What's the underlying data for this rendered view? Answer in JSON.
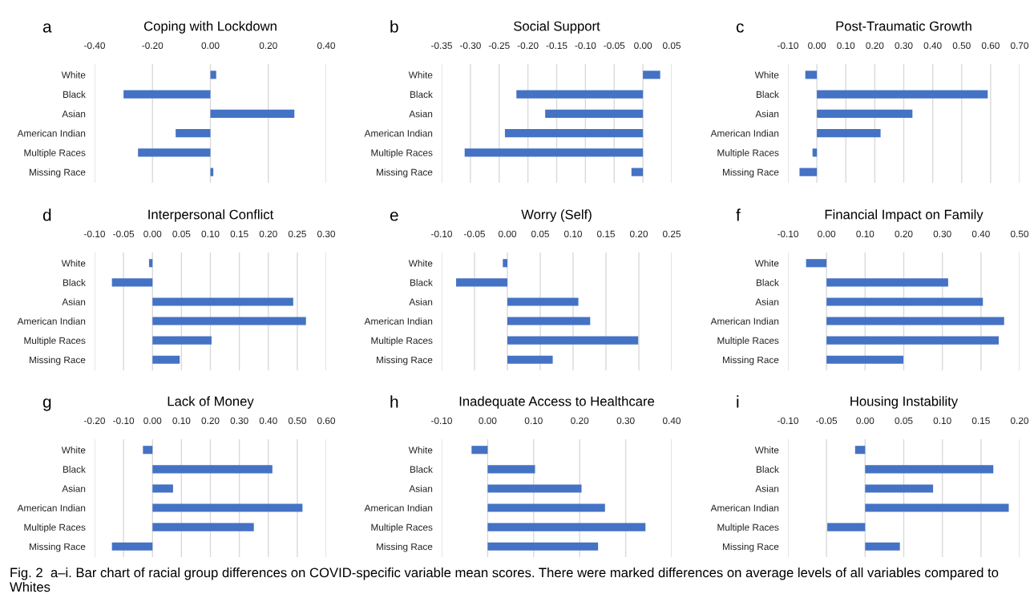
{
  "chart_data": [
    {
      "type": "bar",
      "orientation": "horizontal",
      "title": "Coping with Lockdown",
      "annotations": [
        "a"
      ],
      "categories": [
        "White",
        "Black",
        "Asian",
        "American Indian",
        "Multiple Races",
        "Missing Race"
      ],
      "color": "#4472c4",
      "grid": "x",
      "values": [
        0.02,
        -0.3,
        0.29,
        -0.12,
        -0.25,
        0.01
      ],
      "xlim": [
        -0.4,
        0.4
      ],
      "xticks": [
        {
          "value": -0.4,
          "label": "-0.40"
        },
        {
          "value": -0.2,
          "label": "-0.20"
        },
        {
          "value": 0,
          "label": "0.00"
        },
        {
          "value": 0.2,
          "label": "0.20"
        },
        {
          "value": 0.4,
          "label": "0.40"
        }
      ]
    },
    {
      "type": "bar",
      "orientation": "horizontal",
      "title": "Social Support",
      "annotations": [
        "b"
      ],
      "categories": [
        "White",
        "Black",
        "Asian",
        "American Indian",
        "Multiple Races",
        "Missing Race"
      ],
      "color": "#4472c4",
      "grid": "x",
      "values": [
        0.03,
        -0.22,
        -0.17,
        -0.24,
        -0.31,
        -0.02
      ],
      "xlim": [
        -0.35,
        0.05
      ],
      "xticks": [
        {
          "value": -0.35,
          "label": "-0.35"
        },
        {
          "value": -0.3,
          "label": "-0.30"
        },
        {
          "value": -0.25,
          "label": "-0.25"
        },
        {
          "value": -0.2,
          "label": "-0.20"
        },
        {
          "value": -0.15,
          "label": "-0.15"
        },
        {
          "value": -0.1,
          "label": "-0.10"
        },
        {
          "value": -0.05,
          "label": "-0.05"
        },
        {
          "value": 0,
          "label": "0.00"
        },
        {
          "value": 0.05,
          "label": "0.05"
        }
      ]
    },
    {
      "type": "bar",
      "orientation": "horizontal",
      "title": "Post-Traumatic Growth",
      "annotations": [
        "c"
      ],
      "categories": [
        "White",
        "Black",
        "Asian",
        "American Indian",
        "Multiple Races",
        "Missing Race"
      ],
      "color": "#4472c4",
      "grid": "x",
      "values": [
        -0.04,
        0.59,
        0.33,
        0.22,
        -0.015,
        -0.06
      ],
      "xlim": [
        -0.1,
        0.7
      ],
      "xticks": [
        {
          "value": -0.1,
          "label": "-0.10"
        },
        {
          "value": 0,
          "label": "0.00"
        },
        {
          "value": 0.1,
          "label": "0.10"
        },
        {
          "value": 0.2,
          "label": "0.20"
        },
        {
          "value": 0.3,
          "label": "0.30"
        },
        {
          "value": 0.4,
          "label": "0.40"
        },
        {
          "value": 0.5,
          "label": "0.50"
        },
        {
          "value": 0.6,
          "label": "0.60"
        },
        {
          "value": 0.7,
          "label": "0.70"
        }
      ]
    },
    {
      "type": "bar",
      "orientation": "horizontal",
      "title": "Interpersonal Conflict",
      "annotations": [
        "d"
      ],
      "categories": [
        "White",
        "Black",
        "Asian",
        "American Indian",
        "Multiple Races",
        "Missing Race"
      ],
      "color": "#4472c4",
      "grid": "x",
      "values": [
        -0.006,
        -0.07,
        0.243,
        0.265,
        0.102,
        0.047
      ],
      "xlim": [
        -0.1,
        0.3
      ],
      "xticks": [
        {
          "value": -0.1,
          "label": "-0.10"
        },
        {
          "value": -0.05,
          "label": "-0.05"
        },
        {
          "value": 0,
          "label": "0.00"
        },
        {
          "value": 0.05,
          "label": "0.05"
        },
        {
          "value": 0.1,
          "label": "0.10"
        },
        {
          "value": 0.15,
          "label": "0.15"
        },
        {
          "value": 0.2,
          "label": "0.20"
        },
        {
          "value": 0.25,
          "label": "0.25"
        },
        {
          "value": 0.3,
          "label": "0.30"
        }
      ]
    },
    {
      "type": "bar",
      "orientation": "horizontal",
      "title": "Worry (Self)",
      "annotations": [
        "e"
      ],
      "categories": [
        "White",
        "Black",
        "Asian",
        "American Indian",
        "Multiple Races",
        "Missing Race"
      ],
      "color": "#4472c4",
      "grid": "x",
      "values": [
        -0.007,
        -0.078,
        0.108,
        0.126,
        0.199,
        0.069
      ],
      "xlim": [
        -0.1,
        0.25
      ],
      "xticks": [
        {
          "value": -0.1,
          "label": "-0.10"
        },
        {
          "value": -0.05,
          "label": "-0.05"
        },
        {
          "value": 0,
          "label": "0.00"
        },
        {
          "value": 0.05,
          "label": "0.05"
        },
        {
          "value": 0.1,
          "label": "0.10"
        },
        {
          "value": 0.15,
          "label": "0.15"
        },
        {
          "value": 0.2,
          "label": "0.20"
        },
        {
          "value": 0.25,
          "label": "0.25"
        }
      ]
    },
    {
      "type": "bar",
      "orientation": "horizontal",
      "title": "Financial Impact on Family",
      "annotations": [
        "f"
      ],
      "categories": [
        "White",
        "Black",
        "Asian",
        "American Indian",
        "Multiple Races",
        "Missing Race"
      ],
      "color": "#4472c4",
      "grid": "x",
      "values": [
        -0.053,
        0.315,
        0.405,
        0.46,
        0.446,
        0.199
      ],
      "xlim": [
        -0.1,
        0.5
      ],
      "xticks": [
        {
          "value": -0.1,
          "label": "-0.10"
        },
        {
          "value": 0,
          "label": "0.00"
        },
        {
          "value": 0.1,
          "label": "0.10"
        },
        {
          "value": 0.2,
          "label": "0.20"
        },
        {
          "value": 0.3,
          "label": "0.30"
        },
        {
          "value": 0.4,
          "label": "0.40"
        },
        {
          "value": 0.5,
          "label": "0.50"
        }
      ]
    },
    {
      "type": "bar",
      "orientation": "horizontal",
      "title": "Lack of Money",
      "annotations": [
        "g"
      ],
      "categories": [
        "White",
        "Black",
        "Asian",
        "American Indian",
        "Multiple Races",
        "Missing Race"
      ],
      "color": "#4472c4",
      "grid": "x",
      "values": [
        -0.033,
        0.414,
        0.071,
        0.518,
        0.35,
        -0.14
      ],
      "xlim": [
        -0.2,
        0.6
      ],
      "xticks": [
        {
          "value": -0.2,
          "label": "-0.20"
        },
        {
          "value": -0.1,
          "label": "-0.10"
        },
        {
          "value": 0,
          "label": "0.00"
        },
        {
          "value": 0.1,
          "label": "0.10"
        },
        {
          "value": 0.2,
          "label": "0.20"
        },
        {
          "value": 0.3,
          "label": "0.30"
        },
        {
          "value": 0.4,
          "label": "0.40"
        },
        {
          "value": 0.5,
          "label": "0.50"
        },
        {
          "value": 0.6,
          "label": "0.60"
        }
      ]
    },
    {
      "type": "bar",
      "orientation": "horizontal",
      "title": "Inadequate Access to Healthcare",
      "annotations": [
        "h"
      ],
      "categories": [
        "White",
        "Black",
        "Asian",
        "American Indian",
        "Multiple Races",
        "Missing Race"
      ],
      "color": "#4472c4",
      "grid": "x",
      "values": [
        -0.035,
        0.103,
        0.204,
        0.255,
        0.343,
        0.24
      ],
      "xlim": [
        -0.1,
        0.4
      ],
      "xticks": [
        {
          "value": -0.1,
          "label": "-0.10"
        },
        {
          "value": 0,
          "label": "0.00"
        },
        {
          "value": 0.1,
          "label": "0.10"
        },
        {
          "value": 0.2,
          "label": "0.20"
        },
        {
          "value": 0.3,
          "label": "0.30"
        },
        {
          "value": 0.4,
          "label": "0.40"
        }
      ]
    },
    {
      "type": "bar",
      "orientation": "horizontal",
      "title": "Housing Instability",
      "annotations": [
        "i",
        "Fig. 2  a–i. Bar chart of racial group differences on COVID-specific variable mean scores. There were marked differences on average levels of all variables compared to Whites"
      ],
      "categories": [
        "White",
        "Black",
        "Asian",
        "American Indian",
        "Multiple Races",
        "Missing Race"
      ],
      "color": "#4472c4",
      "grid": "x",
      "values": [
        -0.013,
        0.166,
        0.088,
        0.186,
        -0.049,
        0.045
      ],
      "xlim": [
        -0.1,
        0.2
      ],
      "xticks": [
        {
          "value": -0.1,
          "label": "-0.10"
        },
        {
          "value": -0.05,
          "label": "-0.05"
        },
        {
          "value": 0,
          "label": "0.00"
        },
        {
          "value": 0.05,
          "label": "0.05"
        },
        {
          "value": 0.1,
          "label": "0.10"
        },
        {
          "value": 0.15,
          "label": "0.15"
        },
        {
          "value": 0.2,
          "label": "0.20"
        }
      ]
    }
  ]
}
